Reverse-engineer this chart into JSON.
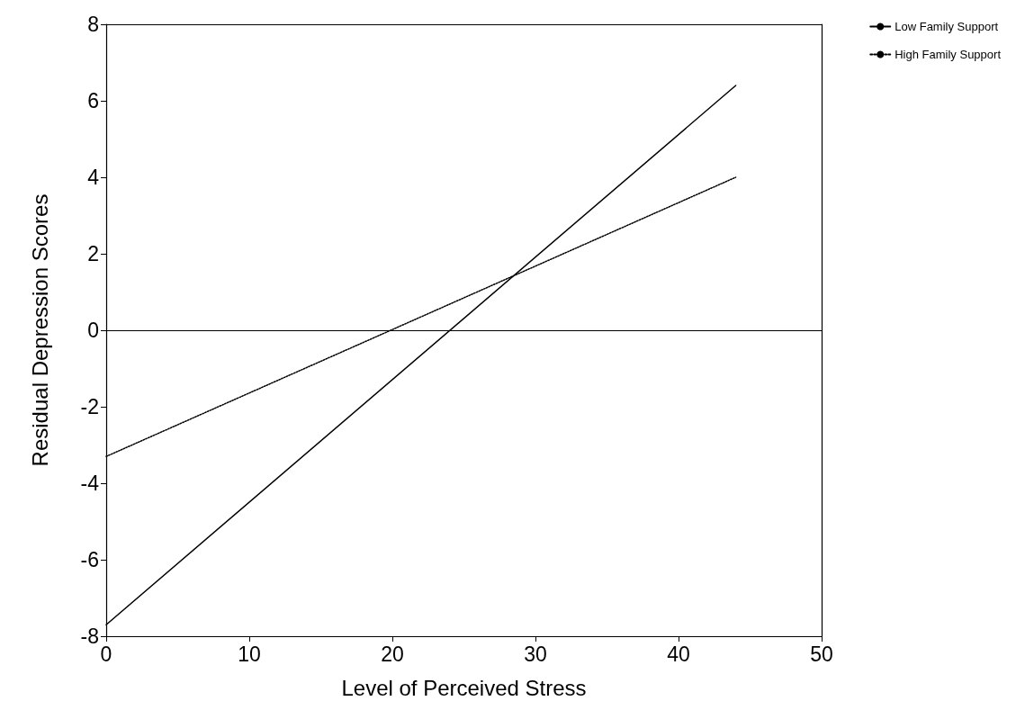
{
  "chart_data": {
    "type": "line",
    "xlabel": "Level of Perceived Stress",
    "ylabel": "Residual Depression Scores",
    "x": [
      0,
      44
    ],
    "series": [
      {
        "name": "Low Family Support",
        "color": "#000000",
        "values": [
          -7.7,
          6.4
        ],
        "line_style": "solid"
      },
      {
        "name": "High Family Support",
        "color": "#000000",
        "values": [
          -3.3,
          4.0
        ],
        "line_style": "dotted"
      }
    ],
    "xlim": [
      0,
      50
    ],
    "xticks": [
      0,
      10,
      20,
      30,
      40,
      50
    ],
    "ylim": [
      -8,
      8
    ],
    "yticks": [
      -8,
      -6,
      -4,
      -2,
      0,
      2,
      4,
      6,
      8
    ],
    "ref_lines": [
      {
        "axis": "y",
        "value": 0,
        "color": "#000000"
      }
    ],
    "grid": false,
    "legend": "top right",
    "marker": "none"
  }
}
